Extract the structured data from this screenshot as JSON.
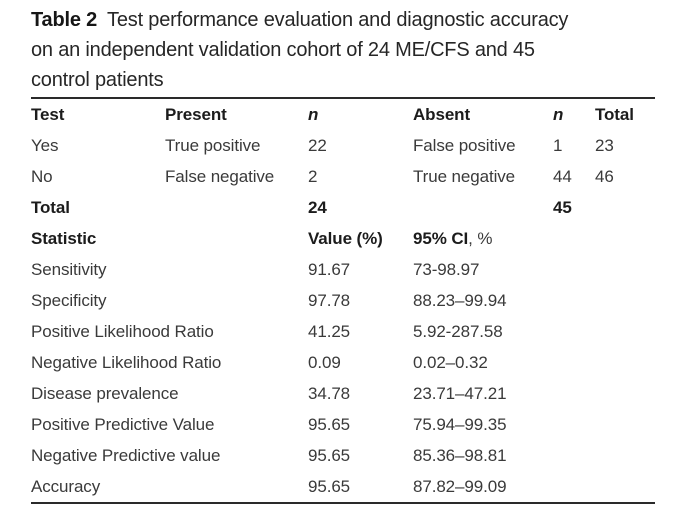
{
  "caption": {
    "label": "Table 2",
    "lines": [
      "Test performance evaluation and diagnostic accuracy",
      "on an independent validation cohort of 24 ME/CFS and 45",
      "control patients"
    ]
  },
  "table": {
    "contingency": {
      "headers": [
        "Test",
        "Present",
        "n",
        "Absent",
        "n",
        "Total"
      ],
      "rows": [
        [
          "Yes",
          "True positive",
          "22",
          "False positive",
          "1",
          "23"
        ],
        [
          "No",
          "False negative",
          "2",
          "True negative",
          "44",
          "46"
        ],
        [
          "Total",
          "",
          "24",
          "",
          "45",
          ""
        ]
      ]
    },
    "statistics": {
      "header": {
        "label": "Statistic",
        "value": "Value (%)",
        "ci_bold": "95% CI",
        "ci_rest": ", %"
      },
      "rows": [
        [
          "Sensitivity",
          "91.67",
          "73-98.97"
        ],
        [
          "Specificity",
          "97.78",
          "88.23–99.94"
        ],
        [
          "Positive Likelihood Ratio",
          "41.25",
          "5.92-287.58"
        ],
        [
          "Negative Likelihood Ratio",
          "0.09",
          "0.02–0.32"
        ],
        [
          "Disease prevalence",
          "34.78",
          "23.71–47.21"
        ],
        [
          "Positive Predictive Value",
          "95.65",
          "75.94–99.35"
        ],
        [
          "Negative Predictive value",
          "95.65",
          "85.36–98.81"
        ],
        [
          "Accuracy",
          "95.65",
          "87.82–99.09"
        ]
      ]
    }
  },
  "colors": {
    "background": "#ffffff",
    "text_regular": "#3a3a3a",
    "text_bold": "#1c1c1c",
    "rule": "#2a2a2a"
  }
}
